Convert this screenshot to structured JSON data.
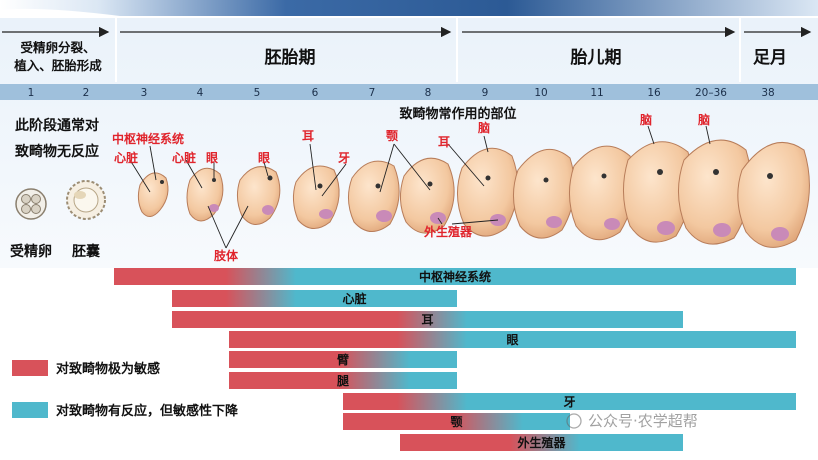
{
  "periods": [
    {
      "label": "受精卵分裂、",
      "label2": "植入、胚胎形成"
    },
    {
      "label": "胚胎期"
    },
    {
      "label": "胎儿期"
    },
    {
      "label": "足月"
    }
  ],
  "weeks": [
    "1",
    "2",
    "3",
    "4",
    "5",
    "6",
    "7",
    "8",
    "9",
    "10",
    "11",
    "16",
    "20–36",
    "38"
  ],
  "early_note": {
    "line1": "此阶段通常对",
    "line2": "致畸物无反应"
  },
  "sites_title": "致畸物常作用的部位",
  "stage_labels": {
    "zygote": "受精卵",
    "blastocyst": "胚囊"
  },
  "organ_labels": {
    "cns": "中枢神经系统",
    "heart_w3": "心脏",
    "heart_w4": "心脏",
    "eye_w4": "眼",
    "eye_w5": "眼",
    "ear_w6": "耳",
    "ear_w9": "耳",
    "teeth": "牙",
    "jaw": "颚",
    "limbs": "肢体",
    "genitals": "外生殖器",
    "brain_w9": "脑",
    "brain_w16": "脑",
    "brain_w2036": "脑"
  },
  "bars": [
    {
      "label": "中枢神经系统",
      "red_from_week": "3",
      "transition_week": "6",
      "to_week": "38"
    },
    {
      "label": "心脏",
      "red_from_week": "4",
      "transition_week": "6",
      "to_week": "8"
    },
    {
      "label": "耳",
      "red_from_week": "4",
      "transition_week": "9",
      "to_week": "16"
    },
    {
      "label": "眼",
      "red_from_week": "5",
      "transition_week": "9",
      "to_week": "38"
    },
    {
      "label": "臂",
      "red_from_week": "5",
      "transition_week": "8",
      "to_week": "8"
    },
    {
      "label": "腿",
      "red_from_week": "5",
      "transition_week": "8",
      "to_week": "8"
    },
    {
      "label": "牙",
      "red_from_week": "7",
      "transition_week": "9",
      "to_week": "38"
    },
    {
      "label": "颚",
      "red_from_week": "7",
      "transition_week": "10",
      "to_week": "10"
    },
    {
      "label": "外生殖器",
      "red_from_week": "8",
      "transition_week": "11",
      "to_week": "16"
    }
  ],
  "legend": [
    {
      "label": "对致畸物极为敏感",
      "color": "#d8525a"
    },
    {
      "label": "对致畸物有反应，但敏感性下降",
      "color": "#4fb8cc"
    }
  ],
  "watermark": "公众号·农学超帮",
  "colors": {
    "red": "#d8525a",
    "teal": "#4fb8cc",
    "week_band": "#9fc0dc",
    "header_dark": "#2e5c96",
    "organ_red": "#e0242c"
  }
}
